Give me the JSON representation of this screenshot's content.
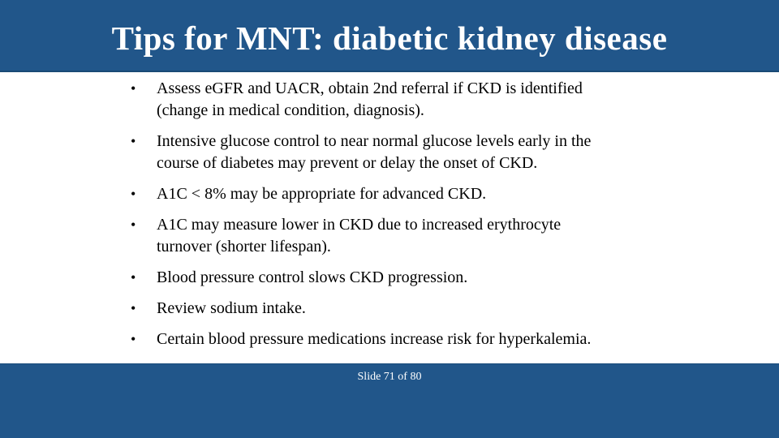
{
  "slide": {
    "title": "Tips for MNT: diabetic kidney disease",
    "bullets": [
      "Assess eGFR and UACR, obtain 2nd referral if CKD is identified\n(change in medical condition, diagnosis).",
      "Intensive glucose control to near normal glucose levels early in the\ncourse of diabetes may prevent or delay the onset of CKD.",
      "A1C < 8% may be appropriate for advanced CKD.",
      "A1C may measure lower in CKD due to increased erythrocyte\nturnover (shorter lifespan).",
      "Blood pressure control slows CKD progression.",
      "Review sodium intake.",
      "Certain blood pressure medications increase risk for hyperkalemia."
    ],
    "footer": {
      "slide_number_label": "Slide 71 of 80"
    },
    "colors": {
      "banner_blue": "#21568A",
      "banner_edge": "#194A75",
      "title_text": "#FFFFFF",
      "body_text": "#000000"
    }
  }
}
